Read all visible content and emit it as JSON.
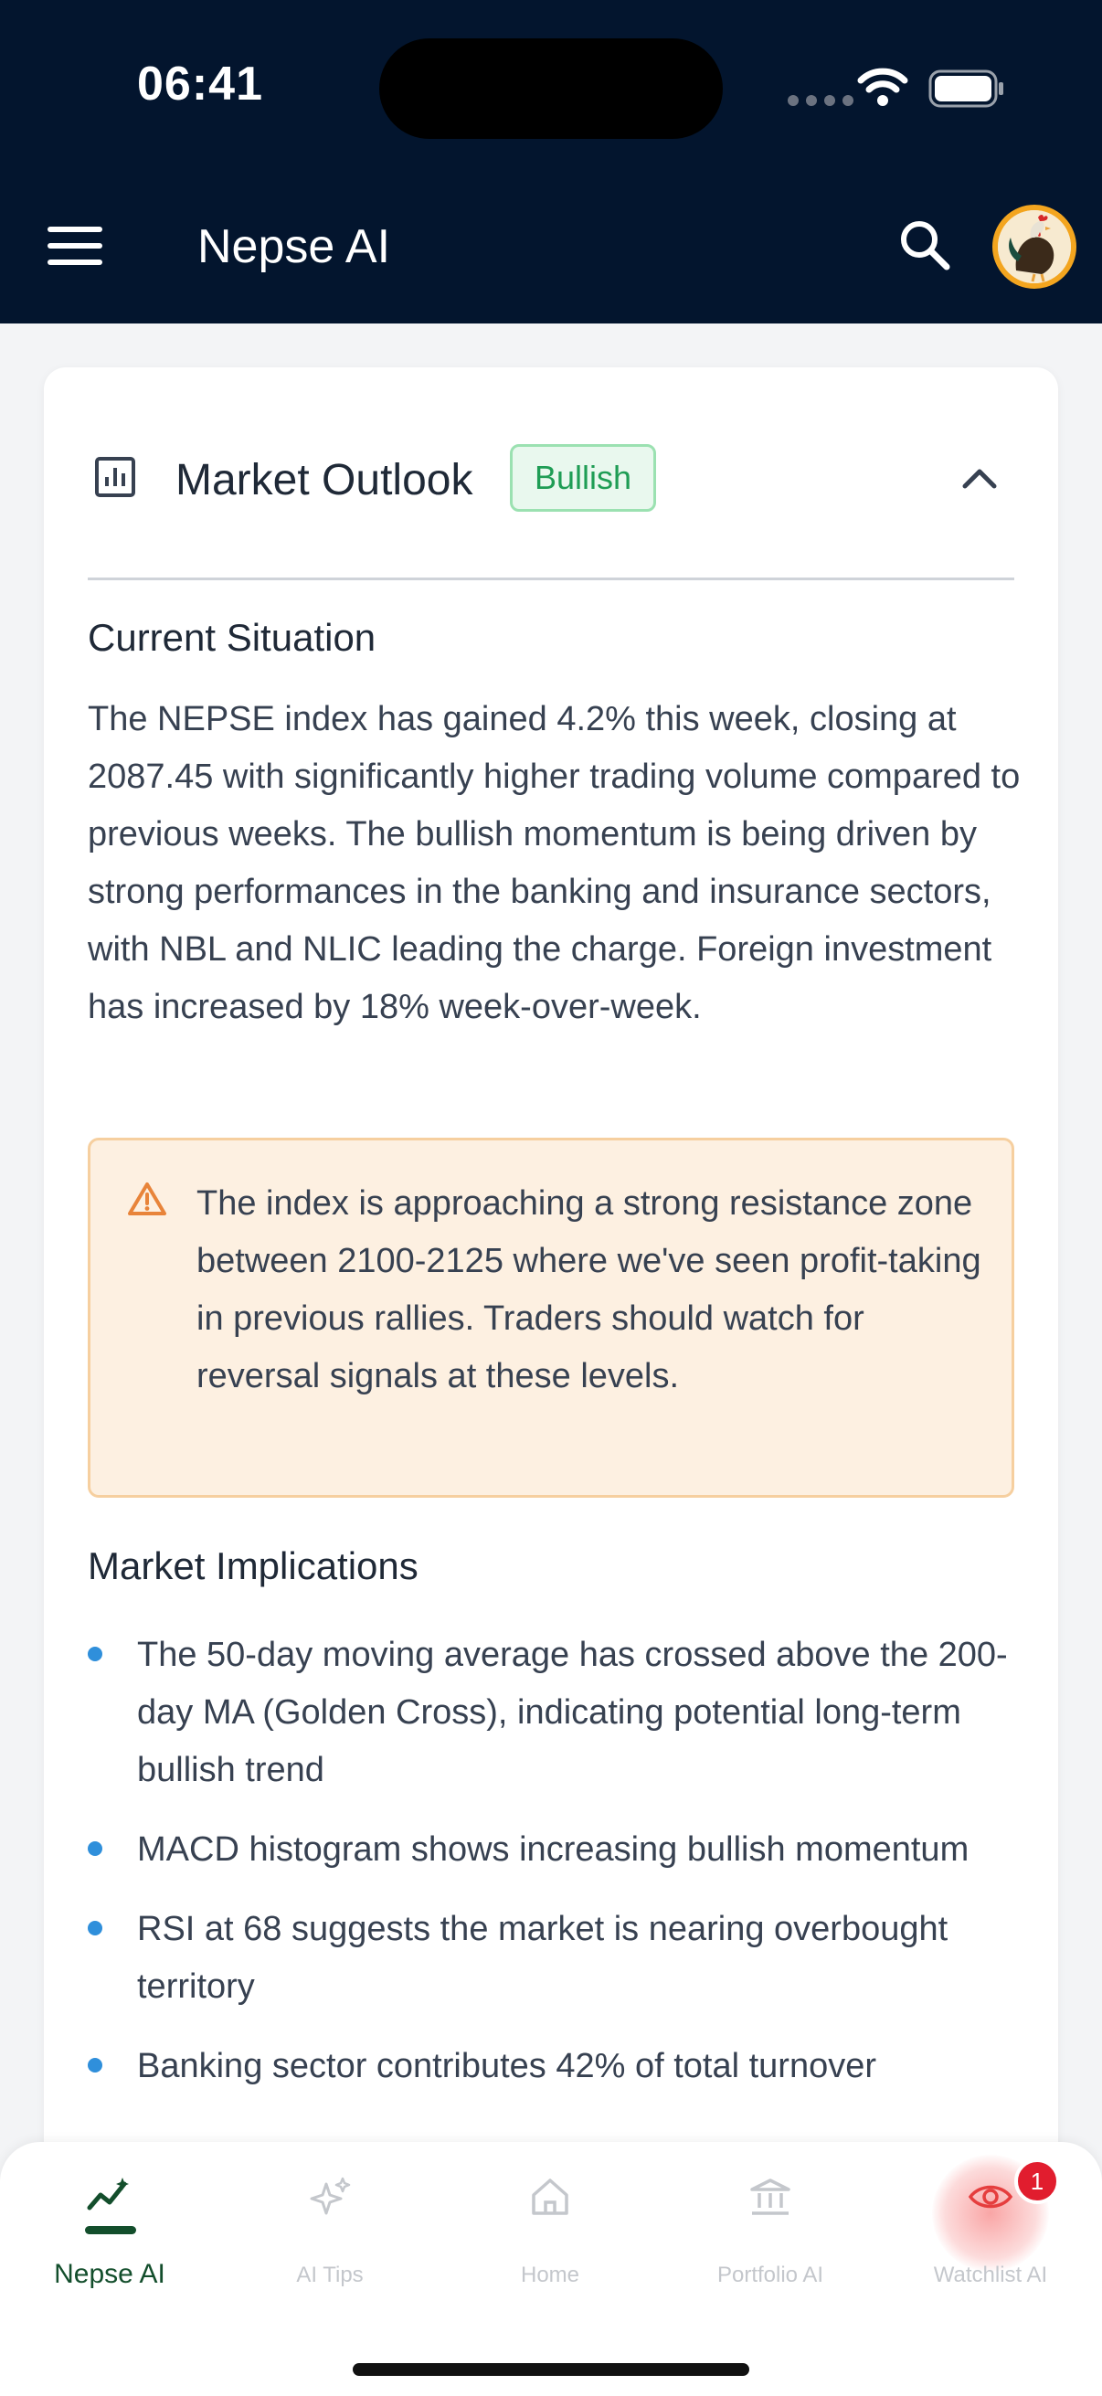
{
  "status_bar": {
    "time": "06:41"
  },
  "header": {
    "title": "Nepse AI",
    "menu_icon": "hamburger-menu-icon",
    "search_icon": "search-icon",
    "avatar_icon": "rooster-avatar"
  },
  "card": {
    "title": "Market Outlook",
    "badge": "Bullish",
    "badge_color": "#1f9d55",
    "current_situation": {
      "heading": "Current Situation",
      "text": "The NEPSE index has gained 4.2% this week, closing at 2087.45 with significantly higher trading volume compared to previous weeks. The bullish momentum is being driven by strong performances in the banking and insurance sectors, with NBL and NLIC leading the charge. Foreign investment has increased by 18% week-over-week."
    },
    "alert": {
      "icon": "warning-icon",
      "text": "The index is approaching a strong resistance zone between 2100-2125 where we've seen profit-taking in previous rallies. Traders should watch for reversal signals at these levels."
    },
    "implications": {
      "heading": "Market Implications",
      "items": [
        "The 50-day moving average has crossed above the 200-day MA (Golden Cross), indicating potential long-term bullish trend",
        "MACD histogram shows increasing bullish momentum",
        "RSI at 68 suggests the market is nearing overbought territory",
        "Banking sector contributes 42% of total turnover"
      ]
    }
  },
  "tabbar": {
    "tabs": [
      {
        "label": "Nepse AI",
        "icon": "trend-chart-icon",
        "active": true
      },
      {
        "label": "AI Tips",
        "icon": "sparkles-icon"
      },
      {
        "label": "Home",
        "icon": "home-icon"
      },
      {
        "label": "Portfolio AI",
        "icon": "bank-icon"
      },
      {
        "label": "Watchlist AI",
        "icon": "eye-icon",
        "badge": "1"
      }
    ]
  },
  "colors": {
    "header_bg": "#03152e",
    "active_tab": "#134e2c",
    "alert_bg": "#fdf0e1",
    "bullet": "#2f8fdb"
  }
}
